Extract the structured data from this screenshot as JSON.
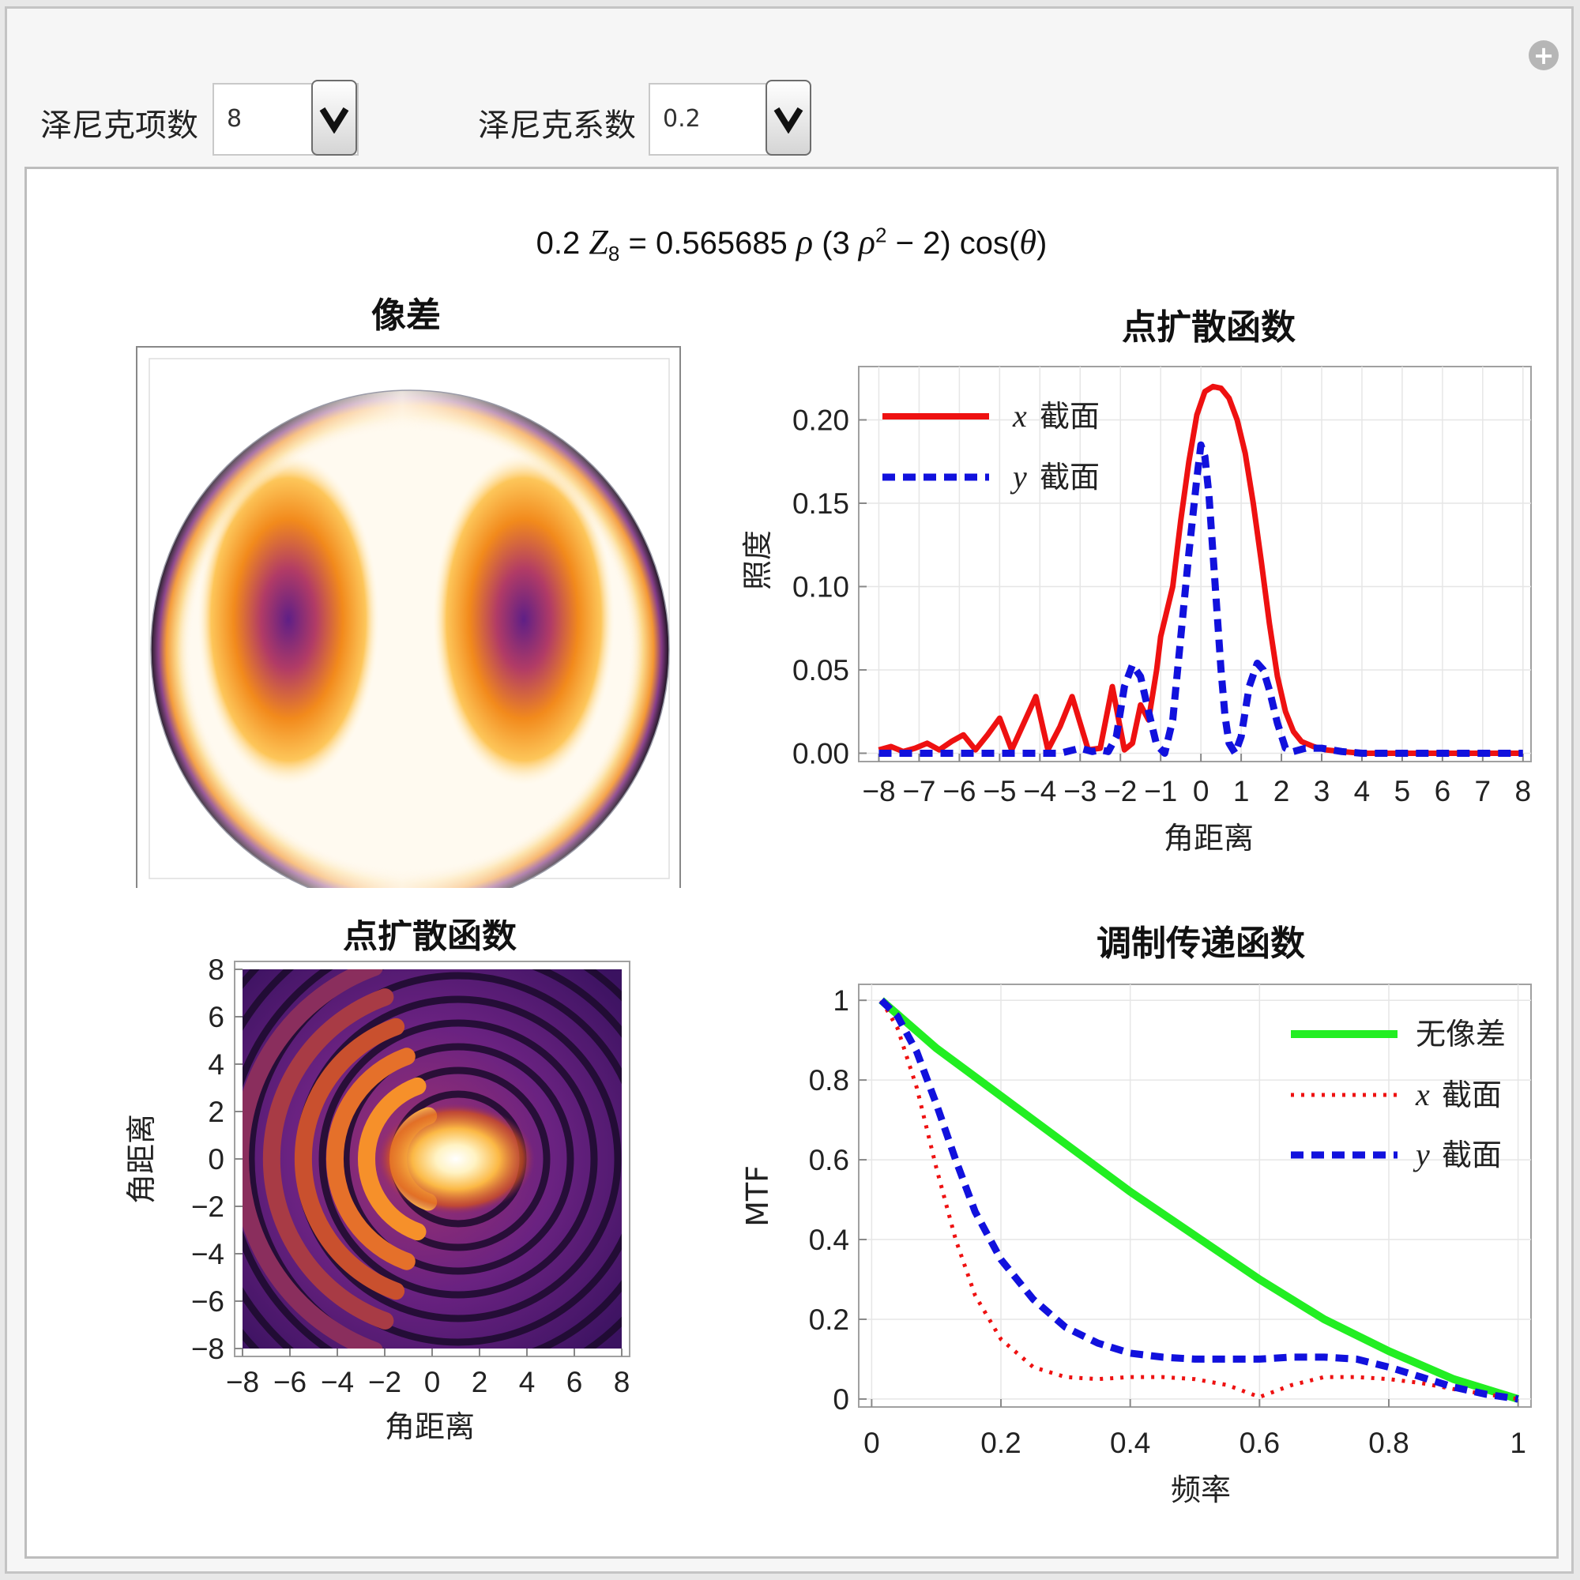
{
  "controls": {
    "zernike_term_label": "泽尼克项数",
    "zernike_term_value": "8",
    "zernike_coef_label": "泽尼克系数",
    "zernike_coef_value": "0.2"
  },
  "formula": {
    "coef": "0.2",
    "symbol": "Z",
    "index": "8",
    "equals": "=",
    "factor": "0.565685",
    "rho": "ρ",
    "paren_open": "(3",
    "power": "2",
    "minus": "− 2)",
    "cos": "cos(",
    "theta": "θ",
    "close": ")"
  },
  "icons": {
    "expand": "plus-circle-icon",
    "dropdown": "chevron-down-icon"
  },
  "chart_data": [
    {
      "type": "heatmap",
      "title": "像差",
      "description_colormap": "inferno-like (black-purple-orange-white)",
      "domain": "unit pupil disc"
    },
    {
      "type": "line",
      "title": "点扩散函数",
      "xlabel": "角距离",
      "ylabel": "照度",
      "xlim": [
        -8.5,
        8.2
      ],
      "ylim": [
        -0.005,
        0.232
      ],
      "xticks": [
        -8,
        -7,
        -6,
        -5,
        -4,
        -3,
        -2,
        -1,
        0,
        1,
        2,
        3,
        4,
        5,
        6,
        7,
        8
      ],
      "yticks": [
        0.0,
        0.05,
        0.1,
        0.15,
        0.2
      ],
      "ytick_labels": [
        "0.00",
        "0.05",
        "0.10",
        "0.15",
        "0.20"
      ],
      "legend_position": "top-left",
      "series": [
        {
          "name_var": "x",
          "name": "截面",
          "color": "#ee1111",
          "dash": "solid",
          "x": [
            -8,
            -7.7,
            -7.4,
            -7.1,
            -6.8,
            -6.5,
            -6.2,
            -5.9,
            -5.6,
            -5.3,
            -5.0,
            -4.7,
            -4.4,
            -4.1,
            -3.8,
            -3.5,
            -3.2,
            -3.0,
            -2.8,
            -2.5,
            -2.2,
            -1.9,
            -1.7,
            -1.5,
            -1.3,
            -1.1,
            -1.0,
            -0.7,
            -0.5,
            -0.3,
            -0.1,
            0.1,
            0.3,
            0.5,
            0.7,
            0.9,
            1.1,
            1.3,
            1.5,
            1.7,
            1.9,
            2.1,
            2.3,
            2.5,
            2.8,
            3.1,
            3.5,
            4.0,
            4.5,
            5.0,
            6.0,
            7.0,
            7.9
          ],
          "y": [
            0.002,
            0.004,
            0.001,
            0.003,
            0.006,
            0.002,
            0.007,
            0.011,
            0.002,
            0.011,
            0.021,
            0.002,
            0.018,
            0.034,
            0.002,
            0.016,
            0.034,
            0.018,
            0.002,
            0.003,
            0.04,
            0.002,
            0.006,
            0.029,
            0.02,
            0.05,
            0.07,
            0.1,
            0.14,
            0.175,
            0.203,
            0.217,
            0.22,
            0.219,
            0.213,
            0.2,
            0.18,
            0.15,
            0.115,
            0.078,
            0.046,
            0.025,
            0.013,
            0.007,
            0.004,
            0.002,
            0.001,
            0.0,
            0.0,
            0.0,
            0.0,
            0.0,
            0.0
          ]
        },
        {
          "name_var": "y",
          "name": "截面",
          "color": "#1111dd",
          "dash": "dashed",
          "x": [
            -8,
            -6,
            -4,
            -3.5,
            -3.0,
            -2.7,
            -2.5,
            -2.3,
            -2.1,
            -1.9,
            -1.7,
            -1.5,
            -1.3,
            -1.1,
            -0.9,
            -0.7,
            -0.5,
            -0.3,
            -0.1,
            0.0,
            0.1,
            0.2,
            0.3,
            0.4,
            0.5,
            0.6,
            0.7,
            0.85,
            1.0,
            1.2,
            1.4,
            1.55,
            1.7,
            1.9,
            2.1,
            2.3,
            2.6,
            3.0,
            3.5,
            4.0,
            5.0,
            6.0,
            7.0,
            8.0
          ],
          "y": [
            0.0,
            0.0,
            0.0,
            0.0,
            0.003,
            0.001,
            0.002,
            0.001,
            0.01,
            0.04,
            0.053,
            0.046,
            0.025,
            0.005,
            0.0,
            0.02,
            0.07,
            0.12,
            0.165,
            0.185,
            0.178,
            0.155,
            0.12,
            0.085,
            0.05,
            0.022,
            0.006,
            0.0,
            0.01,
            0.04,
            0.054,
            0.05,
            0.038,
            0.018,
            0.003,
            0.001,
            0.003,
            0.003,
            0.001,
            0.0,
            0.0,
            0.0,
            0.0,
            0.0
          ]
        }
      ]
    },
    {
      "type": "heatmap",
      "title": "点扩散函数",
      "xlabel": "角距离",
      "ylabel": "角距离",
      "xlim": [
        -8,
        8
      ],
      "ylim": [
        -8,
        8
      ],
      "xticks": [
        -8,
        -6,
        -4,
        -2,
        0,
        2,
        4,
        6,
        8
      ],
      "yticks": [
        -8,
        -6,
        -4,
        -2,
        0,
        2,
        4,
        6,
        8
      ]
    },
    {
      "type": "line",
      "title": "调制传递函数",
      "xlabel": "频率",
      "ylabel": "MTF",
      "xlim": [
        -0.02,
        1.02
      ],
      "ylim": [
        -0.02,
        1.04
      ],
      "xticks": [
        0,
        0.2,
        0.4,
        0.6,
        0.8,
        1
      ],
      "xtick_labels": [
        "0",
        "0.2",
        "0.4",
        "0.6",
        "0.8",
        "1"
      ],
      "yticks": [
        0,
        0.2,
        0.4,
        0.6,
        0.8,
        1
      ],
      "ytick_labels": [
        "0",
        "0.2",
        "0.4",
        "0.6",
        "0.8",
        "1"
      ],
      "legend_position": "top-right",
      "series": [
        {
          "name": "无像差",
          "color": "#22ee22",
          "dash": "solid",
          "x": [
            0.015,
            0.1,
            0.2,
            0.3,
            0.4,
            0.5,
            0.6,
            0.7,
            0.8,
            0.9,
            1.0
          ],
          "y": [
            1.0,
            0.88,
            0.76,
            0.64,
            0.52,
            0.41,
            0.3,
            0.2,
            0.12,
            0.05,
            0.0
          ]
        },
        {
          "name_var": "x",
          "name": "截面",
          "color": "#ee1111",
          "dash": "dotted",
          "x": [
            0.015,
            0.04,
            0.07,
            0.1,
            0.13,
            0.16,
            0.2,
            0.25,
            0.3,
            0.35,
            0.4,
            0.45,
            0.5,
            0.55,
            0.6,
            0.65,
            0.7,
            0.75,
            0.8,
            0.85,
            0.9,
            0.95,
            1.0
          ],
          "y": [
            1.0,
            0.93,
            0.78,
            0.58,
            0.4,
            0.26,
            0.15,
            0.08,
            0.055,
            0.05,
            0.055,
            0.055,
            0.05,
            0.035,
            0.005,
            0.035,
            0.055,
            0.055,
            0.05,
            0.04,
            0.025,
            0.012,
            0.0
          ]
        },
        {
          "name_var": "y",
          "name": "截面",
          "color": "#1111dd",
          "dash": "dashed",
          "x": [
            0.015,
            0.04,
            0.07,
            0.1,
            0.13,
            0.16,
            0.2,
            0.25,
            0.3,
            0.35,
            0.4,
            0.45,
            0.5,
            0.55,
            0.6,
            0.65,
            0.7,
            0.75,
            0.8,
            0.85,
            0.9,
            0.95,
            1.0
          ],
          "y": [
            1.0,
            0.96,
            0.87,
            0.74,
            0.6,
            0.47,
            0.35,
            0.25,
            0.18,
            0.14,
            0.115,
            0.105,
            0.1,
            0.1,
            0.1,
            0.105,
            0.105,
            0.1,
            0.08,
            0.055,
            0.03,
            0.012,
            0.0
          ]
        }
      ]
    }
  ]
}
